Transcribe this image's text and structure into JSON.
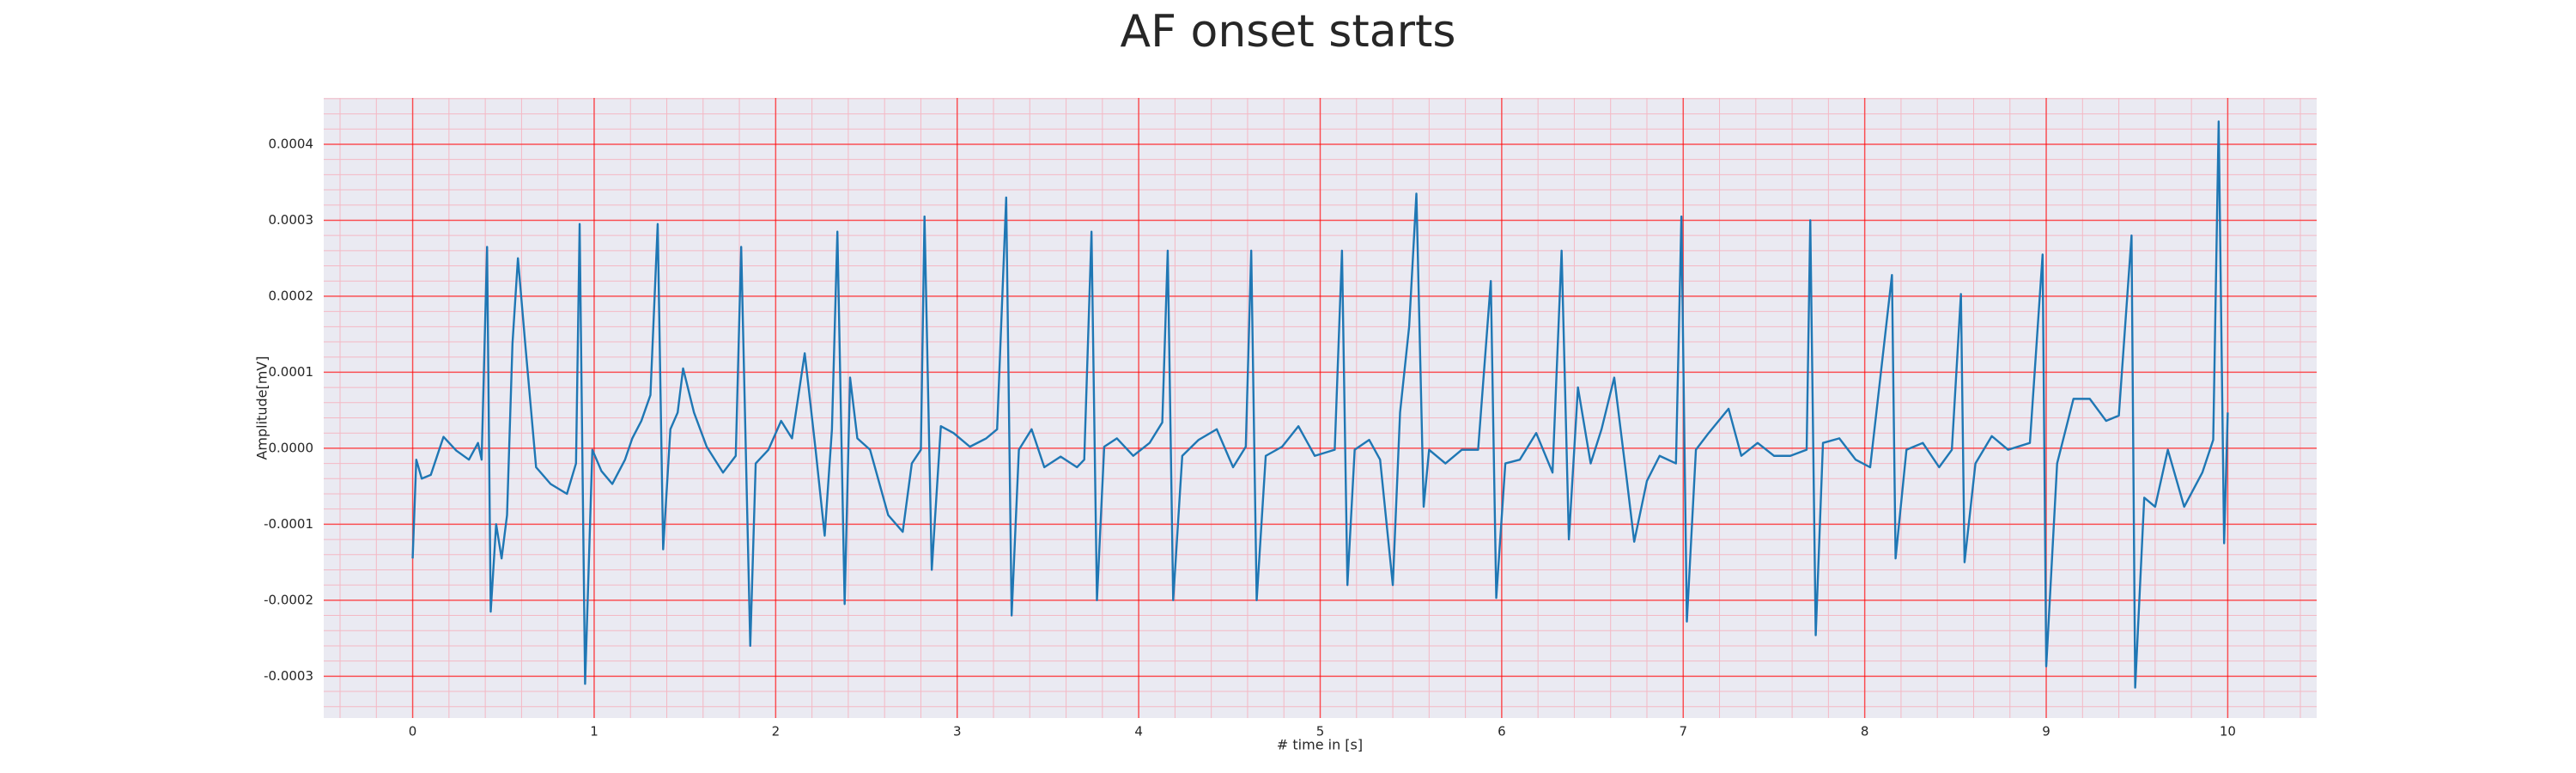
{
  "chart_data": {
    "type": "line",
    "title": "AF onset starts",
    "x_label": "# time in [s]",
    "y_label": "Amplitude[mV]",
    "xlim": [
      -0.49,
      10.49
    ],
    "ylim": [
      -0.000355,
      0.000461
    ],
    "xticks": [
      0,
      1,
      2,
      3,
      4,
      5,
      6,
      7,
      8,
      9,
      10
    ],
    "yticks": [
      {
        "value": -0.0003,
        "label": "-0.0003"
      },
      {
        "value": -0.0002,
        "label": "-0.0002"
      },
      {
        "value": -0.0001,
        "label": "-0.0001"
      },
      {
        "value": 0,
        "label": "0.0000"
      },
      {
        "value": 0.0001,
        "label": "0.0001"
      },
      {
        "value": 0.0002,
        "label": "0.0002"
      },
      {
        "value": 0.0003,
        "label": "0.0003"
      },
      {
        "value": 0.0004,
        "label": "0.0004"
      }
    ],
    "grid": true,
    "minor_grid": true,
    "background_color": "#eaeaf2",
    "grid_color": "#ff0000",
    "minor_grid_color": "#f4b8c4",
    "x": [
      0,
      0.02,
      0.05,
      0.1,
      0.17,
      0.24,
      0.31,
      0.36,
      0.38,
      0.41,
      0.43,
      0.46,
      0.49,
      0.52,
      0.55,
      0.58,
      0.62,
      0.68,
      0.76,
      0.85,
      0.9,
      0.92,
      0.95,
      0.99,
      1.04,
      1.1,
      1.17,
      1.21,
      1.26,
      1.31,
      1.35,
      1.38,
      1.42,
      1.46,
      1.49,
      1.55,
      1.62,
      1.71,
      1.78,
      1.81,
      1.86,
      1.89,
      1.96,
      2.03,
      2.09,
      2.16,
      2.22,
      2.27,
      2.31,
      2.34,
      2.38,
      2.41,
      2.45,
      2.52,
      2.62,
      2.7,
      2.75,
      2.8,
      2.82,
      2.86,
      2.91,
      2.98,
      3.07,
      3.16,
      3.22,
      3.27,
      3.3,
      3.34,
      3.41,
      3.48,
      3.57,
      3.66,
      3.7,
      3.74,
      3.77,
      3.81,
      3.88,
      3.97,
      4.06,
      4.13,
      4.16,
      4.19,
      4.24,
      4.33,
      4.43,
      4.52,
      4.59,
      4.62,
      4.65,
      4.7,
      4.79,
      4.88,
      4.97,
      5.08,
      5.12,
      5.15,
      5.19,
      5.27,
      5.33,
      5.4,
      5.44,
      5.49,
      5.53,
      5.57,
      5.6,
      5.69,
      5.78,
      5.87,
      5.94,
      5.97,
      6.02,
      6.1,
      6.19,
      6.28,
      6.33,
      6.37,
      6.42,
      6.49,
      6.55,
      6.62,
      6.69,
      6.73,
      6.8,
      6.87,
      6.96,
      6.99,
      7.02,
      7.07,
      7.14,
      7.25,
      7.32,
      7.41,
      7.5,
      7.59,
      7.68,
      7.7,
      7.73,
      7.77,
      7.86,
      7.95,
      8.03,
      8.15,
      8.17,
      8.23,
      8.32,
      8.41,
      8.48,
      8.53,
      8.55,
      8.61,
      8.7,
      8.79,
      8.91,
      8.98,
      9.0,
      9.06,
      9.15,
      9.24,
      9.33,
      9.4,
      9.47,
      9.49,
      9.54,
      9.6,
      9.67,
      9.76,
      9.86,
      9.92,
      9.95,
      9.98,
      10.0
    ],
    "series": [
      {
        "color": "#1f77b4",
        "values": [
          -0.000145,
          -1.5e-05,
          -4e-05,
          -3.5e-05,
          1.5e-05,
          -3e-06,
          -1.5e-05,
          7e-06,
          -1.5e-05,
          0.000265,
          -0.000215,
          -0.0001,
          -0.000145,
          -8.8e-05,
          0.000138,
          0.00025,
          0.000138,
          -2.5e-05,
          -4.7e-05,
          -6e-05,
          -2e-05,
          0.000295,
          -0.00031,
          -2e-06,
          -3e-05,
          -4.7e-05,
          -1.5e-05,
          1.3e-05,
          3.6e-05,
          7e-05,
          0.000295,
          -0.000133,
          2.5e-05,
          4.7e-05,
          0.000105,
          4.7e-05,
          2e-06,
          -3.2e-05,
          -1e-05,
          0.000265,
          -0.00026,
          -2e-05,
          -2e-06,
          3.6e-05,
          1.3e-05,
          0.000125,
          -2e-06,
          -0.000115,
          2.5e-05,
          0.000285,
          -0.000205,
          9.3e-05,
          1.3e-05,
          -2e-06,
          -8.8e-05,
          -0.00011,
          -2e-05,
          -2e-06,
          0.000305,
          -0.00016,
          2.9e-05,
          2e-05,
          2e-06,
          1.3e-05,
          2.5e-05,
          0.00033,
          -0.00022,
          -2e-06,
          2.5e-05,
          -2.5e-05,
          -1.1e-05,
          -2.5e-05,
          -1.5e-05,
          0.000285,
          -0.0002,
          2e-06,
          1.3e-05,
          -1e-05,
          7e-06,
          3.4e-05,
          0.00026,
          -0.0002,
          -1e-05,
          1.1e-05,
          2.5e-05,
          -2.5e-05,
          2e-06,
          0.00026,
          -0.0002,
          -1e-05,
          2e-06,
          2.9e-05,
          -1e-05,
          -2e-06,
          0.00026,
          -0.00018,
          -2e-06,
          1.1e-05,
          -1.5e-05,
          -0.00018,
          4.7e-05,
          0.00016,
          0.000335,
          -7.7e-05,
          -2e-06,
          -2e-05,
          -2e-06,
          -2e-06,
          0.00022,
          -0.000197,
          -2e-05,
          -1.5e-05,
          2e-05,
          -3.2e-05,
          0.00026,
          -0.00012,
          8e-05,
          -2e-05,
          2.5e-05,
          9.3e-05,
          -4.3e-05,
          -0.000123,
          -4.3e-05,
          -1e-05,
          -2e-05,
          0.000305,
          -0.000228,
          -2e-06,
          2e-05,
          5.2e-05,
          -1e-05,
          7e-06,
          -1e-05,
          -1e-05,
          -2e-06,
          0.0003,
          -0.000246,
          7e-06,
          1.3e-05,
          -1.5e-05,
          -2.5e-05,
          0.000228,
          -0.000145,
          -2e-06,
          7e-06,
          -2.5e-05,
          -2e-06,
          0.000203,
          -0.00015,
          -2e-05,
          1.6e-05,
          -2e-06,
          7e-06,
          0.000255,
          -0.000287,
          -2e-05,
          6.5e-05,
          6.5e-05,
          3.6e-05,
          4.3e-05,
          0.00028,
          -0.000315,
          -6.5e-05,
          -7.7e-05,
          -2e-06,
          -7.7e-05,
          -3.2e-05,
          1.1e-05,
          0.00043,
          -0.000125,
          4.7e-05
        ]
      }
    ]
  }
}
